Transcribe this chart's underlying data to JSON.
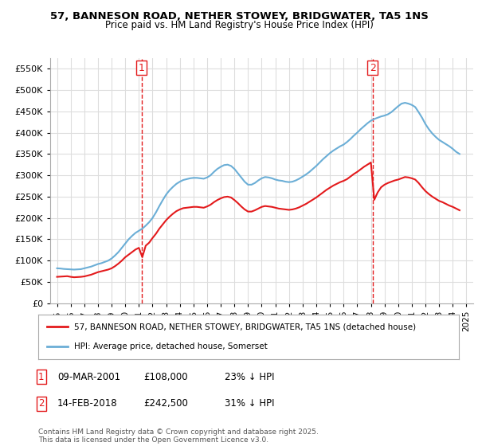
{
  "title": "57, BANNESON ROAD, NETHER STOWEY, BRIDGWATER, TA5 1NS",
  "subtitle": "Price paid vs. HM Land Registry's House Price Index (HPI)",
  "hpi_color": "#6baed6",
  "price_color": "#e31a1c",
  "vline_color": "#e31a1c",
  "background_color": "#ffffff",
  "grid_color": "#dddddd",
  "legend_label_red": "57, BANNESON ROAD, NETHER STOWEY, BRIDGWATER, TA5 1NS (detached house)",
  "legend_label_blue": "HPI: Average price, detached house, Somerset",
  "annotation1_label": "1",
  "annotation1_date": "09-MAR-2001",
  "annotation1_price": "£108,000",
  "annotation1_hpi": "23% ↓ HPI",
  "annotation1_year": 2001.19,
  "annotation1_value": 108000,
  "annotation2_label": "2",
  "annotation2_date": "14-FEB-2018",
  "annotation2_price": "£242,500",
  "annotation2_hpi": "31% ↓ HPI",
  "annotation2_year": 2018.12,
  "annotation2_value": 242500,
  "footer": "Contains HM Land Registry data © Crown copyright and database right 2025.\nThis data is licensed under the Open Government Licence v3.0.",
  "ylim": [
    0,
    575000
  ],
  "yticks": [
    0,
    50000,
    100000,
    150000,
    200000,
    250000,
    300000,
    350000,
    400000,
    450000,
    500000,
    550000
  ],
  "hpi_years": [
    1995.0,
    1995.25,
    1995.5,
    1995.75,
    1996.0,
    1996.25,
    1996.5,
    1996.75,
    1997.0,
    1997.25,
    1997.5,
    1997.75,
    1998.0,
    1998.25,
    1998.5,
    1998.75,
    1999.0,
    1999.25,
    1999.5,
    1999.75,
    2000.0,
    2000.25,
    2000.5,
    2000.75,
    2001.0,
    2001.25,
    2001.5,
    2001.75,
    2002.0,
    2002.25,
    2002.5,
    2002.75,
    2003.0,
    2003.25,
    2003.5,
    2003.75,
    2004.0,
    2004.25,
    2004.5,
    2004.75,
    2005.0,
    2005.25,
    2005.5,
    2005.75,
    2006.0,
    2006.25,
    2006.5,
    2006.75,
    2007.0,
    2007.25,
    2007.5,
    2007.75,
    2008.0,
    2008.25,
    2008.5,
    2008.75,
    2009.0,
    2009.25,
    2009.5,
    2009.75,
    2010.0,
    2010.25,
    2010.5,
    2010.75,
    2011.0,
    2011.25,
    2011.5,
    2011.75,
    2012.0,
    2012.25,
    2012.5,
    2012.75,
    2013.0,
    2013.25,
    2013.5,
    2013.75,
    2014.0,
    2014.25,
    2014.5,
    2014.75,
    2015.0,
    2015.25,
    2015.5,
    2015.75,
    2016.0,
    2016.25,
    2016.5,
    2016.75,
    2017.0,
    2017.25,
    2017.5,
    2017.75,
    2018.0,
    2018.25,
    2018.5,
    2018.75,
    2019.0,
    2019.25,
    2019.5,
    2019.75,
    2020.0,
    2020.25,
    2020.5,
    2020.75,
    2021.0,
    2021.25,
    2021.5,
    2021.75,
    2022.0,
    2022.25,
    2022.5,
    2022.75,
    2023.0,
    2023.25,
    2023.5,
    2023.75,
    2024.0,
    2024.25,
    2024.5
  ],
  "hpi_values": [
    82000,
    81500,
    80500,
    80000,
    79500,
    79000,
    79500,
    80000,
    82000,
    84000,
    86000,
    89000,
    92000,
    94000,
    97000,
    100000,
    105000,
    112000,
    120000,
    130000,
    140000,
    150000,
    158000,
    165000,
    170000,
    175000,
    182000,
    190000,
    200000,
    213000,
    228000,
    242000,
    255000,
    265000,
    273000,
    280000,
    285000,
    289000,
    291000,
    293000,
    294000,
    294000,
    293000,
    292000,
    295000,
    300000,
    308000,
    315000,
    320000,
    324000,
    325000,
    322000,
    315000,
    305000,
    295000,
    285000,
    278000,
    278000,
    282000,
    288000,
    293000,
    296000,
    295000,
    293000,
    290000,
    288000,
    287000,
    285000,
    284000,
    285000,
    288000,
    292000,
    297000,
    302000,
    308000,
    315000,
    322000,
    330000,
    338000,
    345000,
    352000,
    358000,
    363000,
    368000,
    372000,
    378000,
    385000,
    393000,
    400000,
    408000,
    415000,
    422000,
    428000,
    432000,
    435000,
    438000,
    440000,
    443000,
    448000,
    455000,
    462000,
    468000,
    470000,
    468000,
    465000,
    460000,
    448000,
    435000,
    420000,
    408000,
    398000,
    390000,
    383000,
    378000,
    373000,
    368000,
    362000,
    355000,
    350000
  ],
  "price_years": [
    1995.0,
    1995.25,
    1995.5,
    1995.75,
    1996.0,
    1996.25,
    1996.5,
    1996.75,
    1997.0,
    1997.25,
    1997.5,
    1997.75,
    1998.0,
    1998.25,
    1998.5,
    1998.75,
    1999.0,
    1999.25,
    1999.5,
    1999.75,
    2000.0,
    2000.25,
    2000.5,
    2000.75,
    2001.0,
    2001.25,
    2001.5,
    2001.75,
    2002.0,
    2002.25,
    2002.5,
    2002.75,
    2003.0,
    2003.25,
    2003.5,
    2003.75,
    2004.0,
    2004.25,
    2004.5,
    2004.75,
    2005.0,
    2005.25,
    2005.5,
    2005.75,
    2006.0,
    2006.25,
    2006.5,
    2006.75,
    2007.0,
    2007.25,
    2007.5,
    2007.75,
    2008.0,
    2008.25,
    2008.5,
    2008.75,
    2009.0,
    2009.25,
    2009.5,
    2009.75,
    2010.0,
    2010.25,
    2010.5,
    2010.75,
    2011.0,
    2011.25,
    2011.5,
    2011.75,
    2012.0,
    2012.25,
    2012.5,
    2012.75,
    2013.0,
    2013.25,
    2013.5,
    2013.75,
    2014.0,
    2014.25,
    2014.5,
    2014.75,
    2015.0,
    2015.25,
    2015.5,
    2015.75,
    2016.0,
    2016.25,
    2016.5,
    2016.75,
    2017.0,
    2017.25,
    2017.5,
    2017.75,
    2018.0,
    2018.25,
    2018.5,
    2018.75,
    2019.0,
    2019.25,
    2019.5,
    2019.75,
    2020.0,
    2020.25,
    2020.5,
    2020.75,
    2021.0,
    2021.25,
    2021.5,
    2021.75,
    2022.0,
    2022.25,
    2022.5,
    2022.75,
    2023.0,
    2023.25,
    2023.5,
    2023.75,
    2024.0,
    2024.25,
    2024.5
  ],
  "price_values": [
    62000,
    62500,
    63000,
    63500,
    62000,
    61000,
    61500,
    62000,
    63000,
    65000,
    67000,
    70000,
    73000,
    75000,
    77000,
    79000,
    82000,
    87000,
    93000,
    100000,
    108000,
    114000,
    120000,
    126000,
    130000,
    108000,
    135000,
    142000,
    153000,
    163000,
    175000,
    185000,
    195000,
    203000,
    210000,
    216000,
    220000,
    223000,
    224000,
    225000,
    226000,
    226000,
    225000,
    224000,
    227000,
    231000,
    237000,
    242000,
    246000,
    249000,
    250000,
    248000,
    242000,
    235000,
    227000,
    220000,
    215000,
    215000,
    218000,
    222000,
    226000,
    228000,
    227000,
    226000,
    224000,
    222000,
    221000,
    220000,
    219000,
    220000,
    222000,
    225000,
    229000,
    233000,
    238000,
    243000,
    248000,
    254000,
    260000,
    266000,
    271000,
    276000,
    280000,
    284000,
    287000,
    291000,
    297000,
    303000,
    308000,
    314000,
    320000,
    325000,
    330000,
    242500,
    260000,
    272000,
    278000,
    282000,
    285000,
    288000,
    290000,
    293000,
    296000,
    295000,
    293000,
    290000,
    282000,
    272000,
    263000,
    256000,
    250000,
    245000,
    240000,
    237000,
    233000,
    229000,
    226000,
    222000,
    218000
  ],
  "xlim": [
    1994.5,
    2025.5
  ],
  "xticks": [
    1995,
    1996,
    1997,
    1998,
    1999,
    2000,
    2001,
    2002,
    2003,
    2004,
    2005,
    2006,
    2007,
    2008,
    2009,
    2010,
    2011,
    2012,
    2013,
    2014,
    2015,
    2016,
    2017,
    2018,
    2019,
    2020,
    2021,
    2022,
    2023,
    2024,
    2025
  ]
}
